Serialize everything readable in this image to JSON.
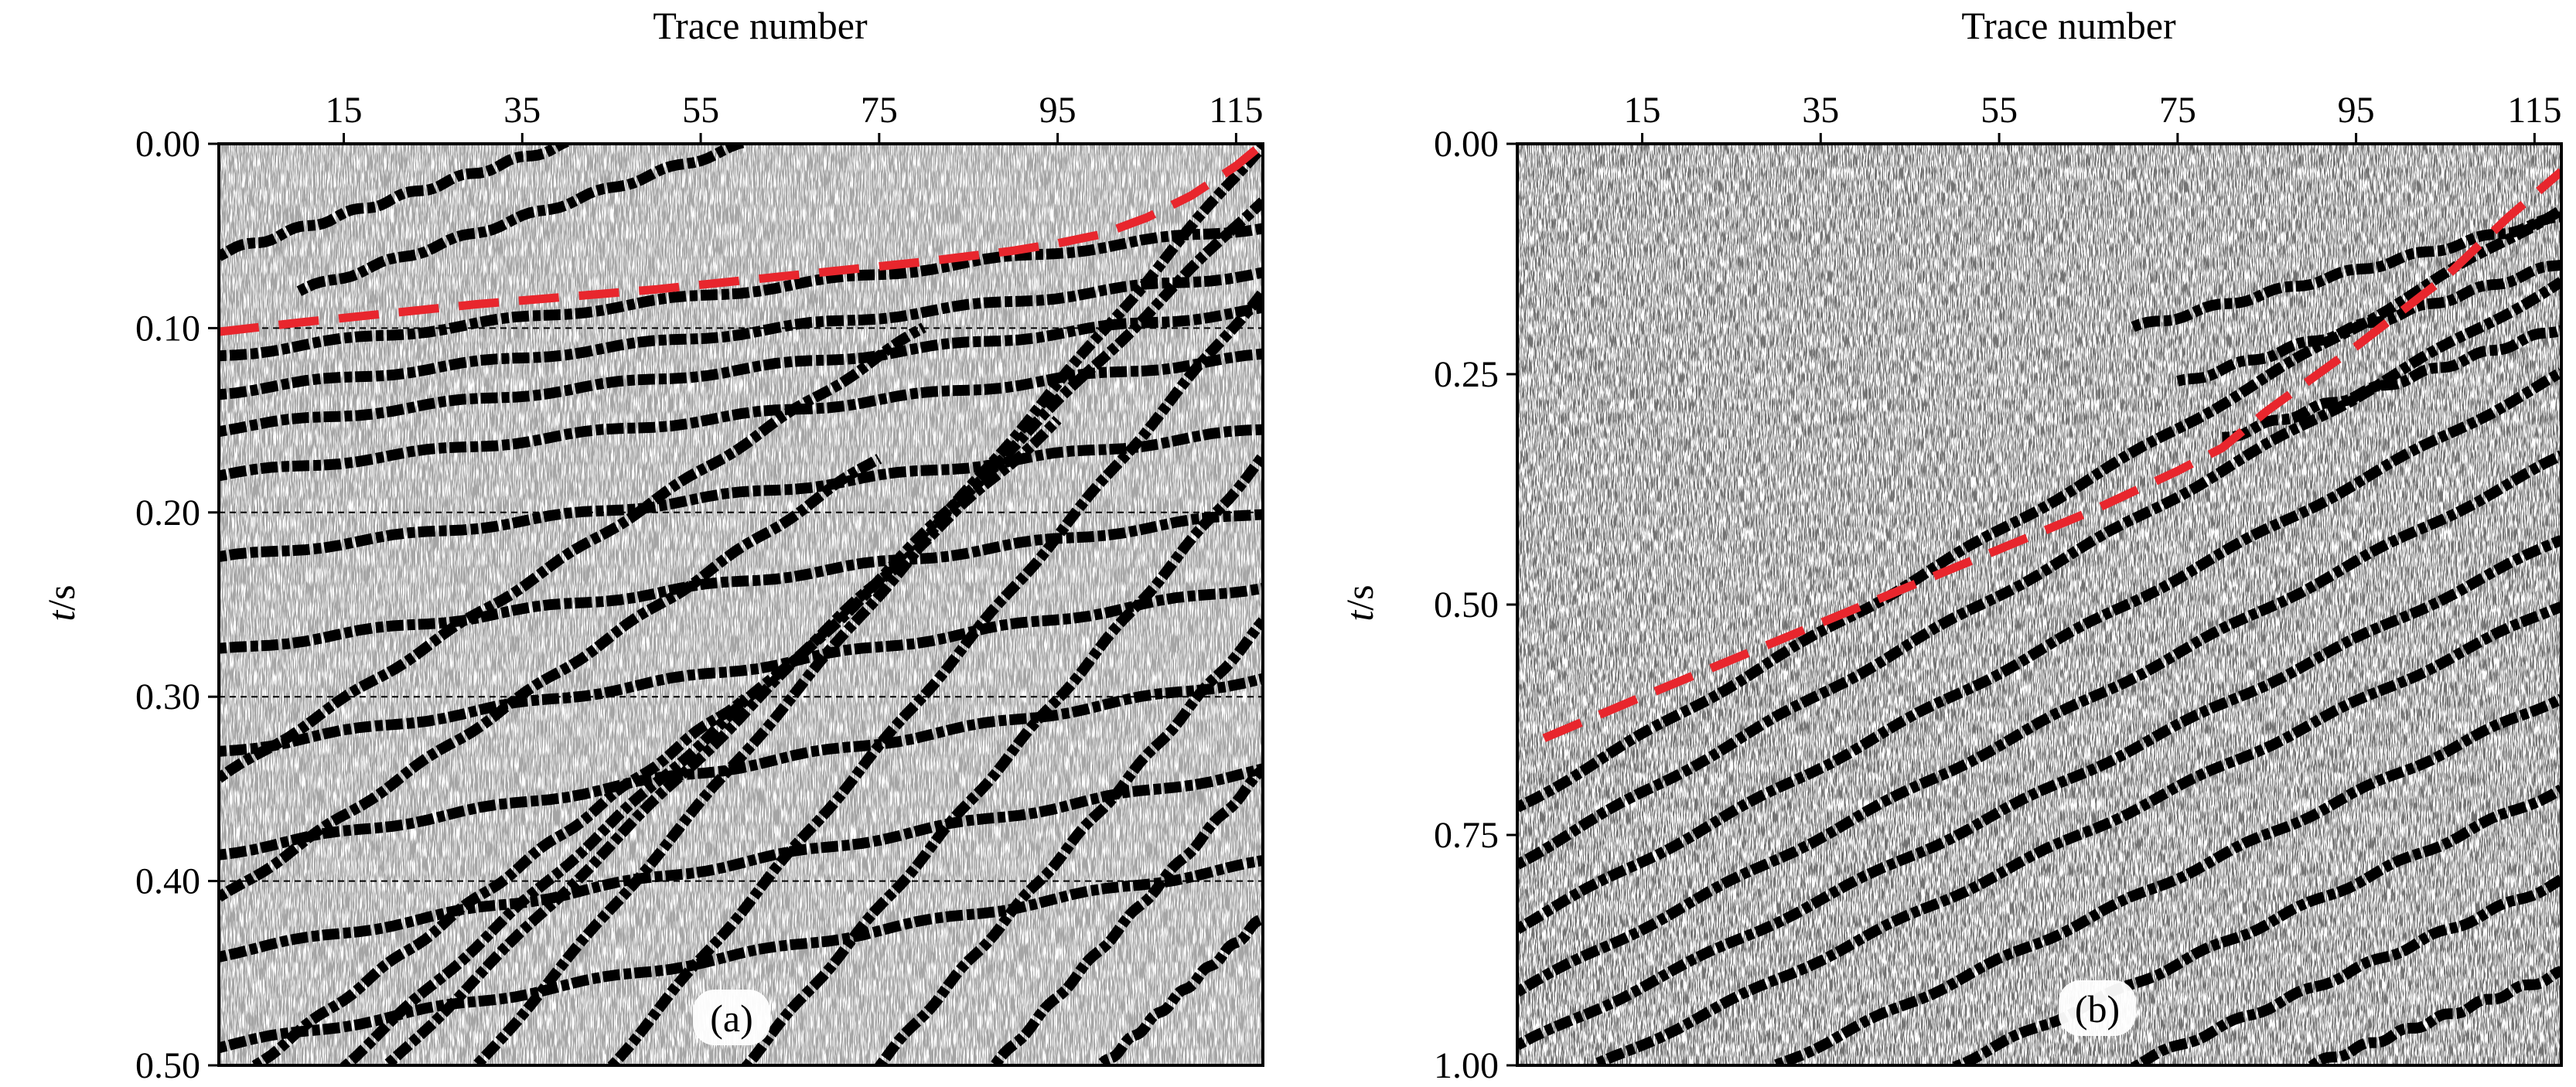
{
  "chart_data": [
    {
      "type": "seismic_section",
      "panel_label": "(a)",
      "xlabel": "Trace number",
      "ylabel_italic": "t",
      "ylabel_rest": "/s",
      "x_ticks": [
        15,
        35,
        55,
        75,
        95,
        115
      ],
      "x_tick_labels": [
        "15",
        "35",
        "55",
        "75",
        "95",
        "115"
      ],
      "y_ticks": [
        0.0,
        0.1,
        0.2,
        0.3,
        0.4,
        0.5
      ],
      "y_tick_labels": [
        "0.00",
        "0.10",
        "0.20",
        "0.30",
        "0.40",
        "0.50"
      ],
      "xlim": [
        1,
        118
      ],
      "ylim": [
        0.0,
        0.5
      ],
      "x_axis_position": "top",
      "y_inverted": true,
      "grid": "dashed horizontal at y ticks",
      "annotation_line": {
        "style": "dashed",
        "color": "#e8262d",
        "x": [
          1,
          10,
          20,
          30,
          40,
          50,
          60,
          70,
          80,
          90,
          95,
          100,
          105,
          110,
          115,
          118
        ],
        "y": [
          0.102,
          0.097,
          0.092,
          0.087,
          0.083,
          0.079,
          0.074,
          0.069,
          0.064,
          0.058,
          0.054,
          0.049,
          0.04,
          0.028,
          0.012,
          0.0
        ]
      },
      "events": [
        {
          "x": [
            1,
            118
          ],
          "y": [
            0.115,
            0.045
          ]
        },
        {
          "x": [
            1,
            118
          ],
          "y": [
            0.135,
            0.07
          ]
        },
        {
          "x": [
            1,
            118
          ],
          "y": [
            0.155,
            0.09
          ]
        },
        {
          "x": [
            1,
            118
          ],
          "y": [
            0.18,
            0.115
          ]
        },
        {
          "x": [
            1,
            118
          ],
          "y": [
            0.225,
            0.155
          ]
        },
        {
          "x": [
            1,
            118
          ],
          "y": [
            0.275,
            0.2
          ]
        },
        {
          "x": [
            1,
            118
          ],
          "y": [
            0.33,
            0.24
          ]
        },
        {
          "x": [
            1,
            118
          ],
          "y": [
            0.385,
            0.29
          ]
        },
        {
          "x": [
            1,
            118
          ],
          "y": [
            0.44,
            0.34
          ]
        },
        {
          "x": [
            1,
            118
          ],
          "y": [
            0.49,
            0.39
          ]
        },
        {
          "x": [
            1,
            80
          ],
          "y": [
            0.345,
            0.1
          ]
        },
        {
          "x": [
            1,
            75
          ],
          "y": [
            0.41,
            0.17
          ]
        },
        {
          "x": [
            30,
            118
          ],
          "y": [
            0.5,
            0.0
          ]
        },
        {
          "x": [
            45,
            118
          ],
          "y": [
            0.5,
            0.08
          ]
        },
        {
          "x": [
            60,
            118
          ],
          "y": [
            0.5,
            0.17
          ]
        },
        {
          "x": [
            75,
            118
          ],
          "y": [
            0.5,
            0.26
          ]
        },
        {
          "x": [
            88,
            118
          ],
          "y": [
            0.5,
            0.34
          ]
        },
        {
          "x": [
            100,
            118
          ],
          "y": [
            0.5,
            0.42
          ]
        },
        {
          "x": [
            20,
            118
          ],
          "y": [
            0.5,
            0.03
          ]
        },
        {
          "x": [
            5,
            60
          ],
          "y": [
            0.5,
            0.3
          ]
        },
        {
          "x": [
            15,
            95
          ],
          "y": [
            0.5,
            0.15
          ]
        },
        {
          "x": [
            1,
            40
          ],
          "y": [
            0.06,
            0.0
          ]
        },
        {
          "x": [
            10,
            60
          ],
          "y": [
            0.08,
            0.0
          ]
        }
      ]
    },
    {
      "type": "seismic_section",
      "panel_label": "(b)",
      "xlabel": "Trace number",
      "ylabel_italic": "t",
      "ylabel_rest": "/s",
      "x_ticks": [
        15,
        35,
        55,
        75,
        95,
        115
      ],
      "x_tick_labels": [
        "15",
        "35",
        "55",
        "75",
        "95",
        "115"
      ],
      "y_ticks": [
        0.0,
        0.25,
        0.5,
        0.75,
        1.0
      ],
      "y_tick_labels": [
        "0.00",
        "0.25",
        "0.50",
        "0.75",
        "1.00"
      ],
      "xlim": [
        1,
        118
      ],
      "ylim": [
        0.0,
        1.0
      ],
      "x_axis_position": "top",
      "y_inverted": true,
      "grid": "none",
      "annotation_line": {
        "style": "dashed",
        "color": "#e8262d",
        "x": [
          4,
          15,
          25,
          35,
          45,
          55,
          65,
          75,
          80,
          85,
          95,
          105,
          112,
          118
        ],
        "y": [
          0.645,
          0.6,
          0.56,
          0.52,
          0.48,
          0.44,
          0.4,
          0.355,
          0.33,
          0.29,
          0.22,
          0.145,
          0.08,
          0.03
        ]
      },
      "events": [
        {
          "x": [
            1,
            118
          ],
          "y": [
            0.72,
            0.07
          ]
        },
        {
          "x": [
            1,
            118
          ],
          "y": [
            0.78,
            0.15
          ]
        },
        {
          "x": [
            1,
            118
          ],
          "y": [
            0.85,
            0.25
          ]
        },
        {
          "x": [
            1,
            118
          ],
          "y": [
            0.92,
            0.34
          ]
        },
        {
          "x": [
            1,
            118
          ],
          "y": [
            0.98,
            0.43
          ]
        },
        {
          "x": [
            10,
            118
          ],
          "y": [
            1.0,
            0.5
          ]
        },
        {
          "x": [
            30,
            118
          ],
          "y": [
            1.0,
            0.6
          ]
        },
        {
          "x": [
            50,
            118
          ],
          "y": [
            1.0,
            0.7
          ]
        },
        {
          "x": [
            70,
            118
          ],
          "y": [
            1.0,
            0.8
          ]
        },
        {
          "x": [
            90,
            118
          ],
          "y": [
            1.0,
            0.9
          ]
        },
        {
          "x": [
            70,
            118
          ],
          "y": [
            0.2,
            0.08
          ]
        },
        {
          "x": [
            75,
            118
          ],
          "y": [
            0.26,
            0.13
          ]
        },
        {
          "x": [
            80,
            118
          ],
          "y": [
            0.32,
            0.2
          ]
        }
      ]
    }
  ]
}
